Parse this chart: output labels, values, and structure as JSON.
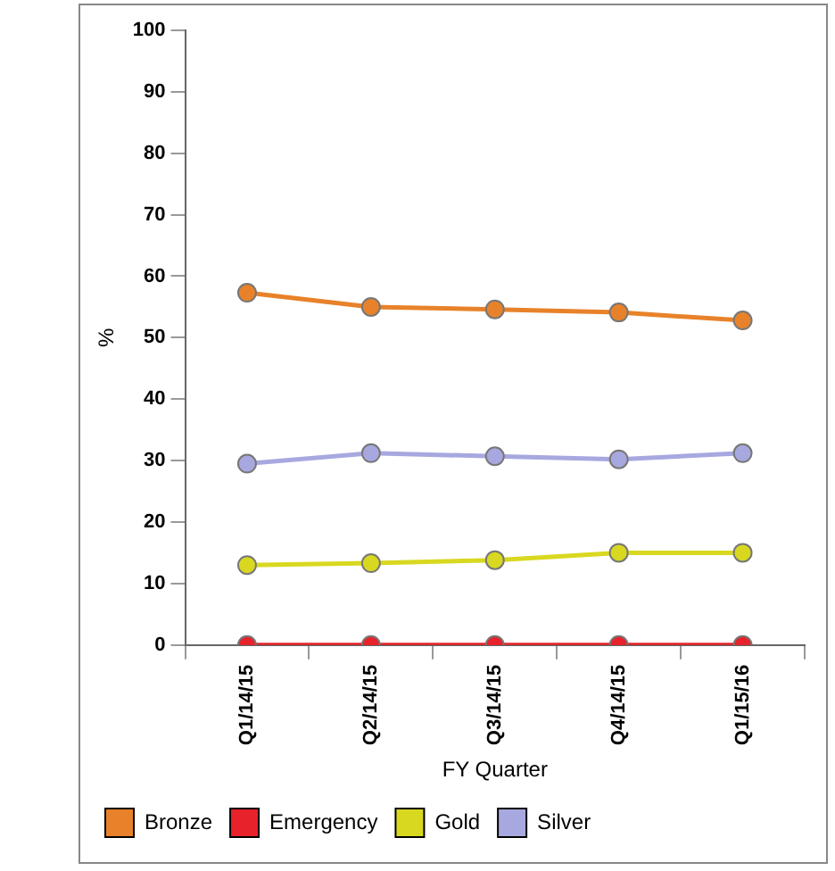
{
  "chart_data": {
    "type": "line",
    "xlabel": "FY Quarter",
    "ylabel": "%",
    "categories": [
      "Q1/14/15",
      "Q2/14/15",
      "Q3/14/15",
      "Q4/14/15",
      "Q1/15/16"
    ],
    "series": [
      {
        "name": "Bronze",
        "color": "#e8822a",
        "values": [
          57.3,
          55.0,
          54.6,
          54.1,
          52.8
        ]
      },
      {
        "name": "Emergency",
        "color": "#e8222a",
        "values": [
          0,
          0,
          0,
          0,
          0
        ]
      },
      {
        "name": "Gold",
        "color": "#d8d820",
        "values": [
          13.0,
          13.3,
          13.8,
          15.0,
          15.0
        ]
      },
      {
        "name": "Silver",
        "color": "#a8a8e0",
        "values": [
          29.5,
          31.2,
          30.7,
          30.2,
          31.2
        ]
      }
    ],
    "ylim": [
      0,
      100
    ],
    "yticks": [
      0,
      10,
      20,
      30,
      40,
      50,
      60,
      70,
      80,
      90,
      100
    ],
    "grid": false,
    "legend": "bottom",
    "marker": "circle",
    "line_style": "solid"
  }
}
